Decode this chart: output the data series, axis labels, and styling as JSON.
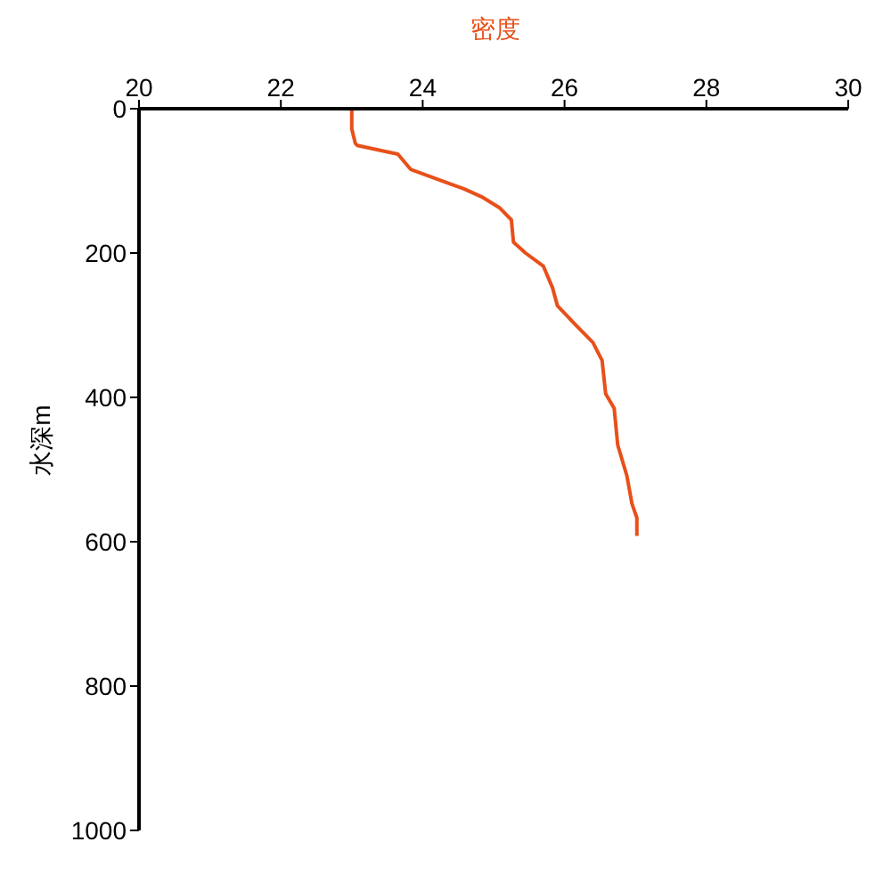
{
  "chart_data": {
    "type": "line",
    "xlabel": "密度",
    "ylabel": "水深m",
    "x": [
      23.0,
      23.0,
      23.05,
      23.08,
      23.65,
      23.83,
      24.58,
      24.83,
      25.08,
      25.25,
      25.28,
      25.45,
      25.7,
      25.83,
      25.9,
      26.15,
      26.4,
      26.53,
      26.58,
      26.7,
      26.75,
      26.88,
      26.95,
      27.02,
      27.02
    ],
    "series": [
      {
        "color": "#e8501a",
        "values": [
          0,
          28,
          48,
          51,
          63,
          84,
          111,
          122,
          137,
          154,
          185,
          200,
          218,
          248,
          273,
          299,
          324,
          349,
          395,
          415,
          466,
          509,
          547,
          567,
          592
        ]
      }
    ],
    "xlim": [
      20,
      30
    ],
    "xticks": [
      20,
      22,
      24,
      26,
      28,
      30
    ],
    "ylim": [
      1000,
      0
    ],
    "yticks": [
      0,
      200,
      400,
      600,
      800,
      1000
    ],
    "grid": false,
    "legend": false,
    "marker": "none",
    "line_style": "solid"
  }
}
